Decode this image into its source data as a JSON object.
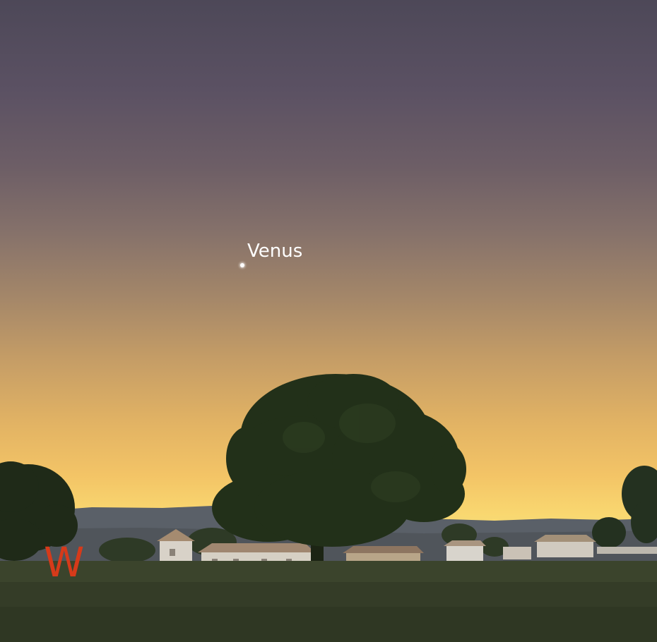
{
  "sky": {
    "objects": [
      {
        "label": "Venus",
        "icon": "planet-dot-icon",
        "color": "#ffffff"
      }
    ]
  },
  "compass": {
    "west_label": "W",
    "color": "#d63a1a"
  }
}
